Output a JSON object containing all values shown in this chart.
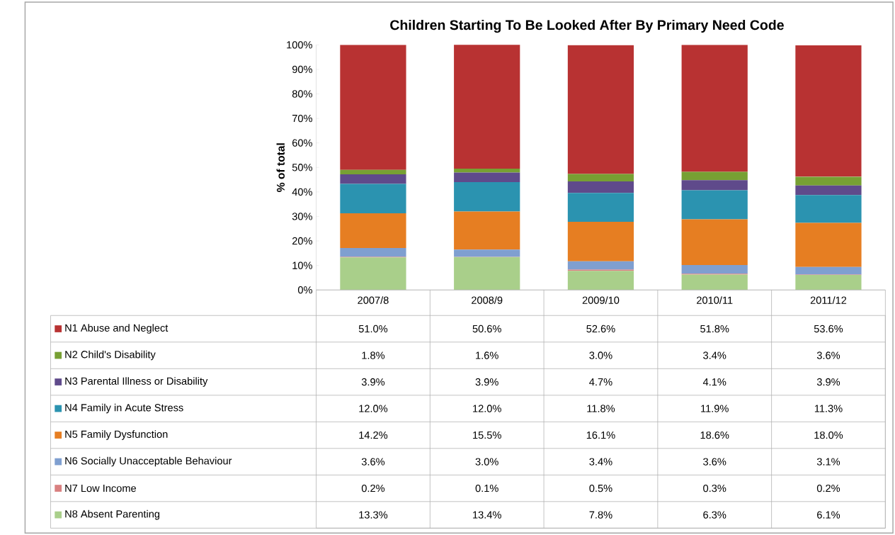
{
  "chart_data": {
    "type": "bar",
    "title": "Children Starting To Be Looked After By Primary Need Code",
    "ylabel": "% of total",
    "stacked": true,
    "legend": "bottom",
    "categories": [
      "2007/8",
      "2008/9",
      "2009/10",
      "2010/11",
      "2011/12"
    ],
    "ylim": [
      0,
      100
    ],
    "yticks": [
      {
        "value": 0,
        "label": "0%"
      },
      {
        "value": 10,
        "label": "10%"
      },
      {
        "value": 20,
        "label": "20%"
      },
      {
        "value": 30,
        "label": "30%"
      },
      {
        "value": 40,
        "label": "40%"
      },
      {
        "value": 50,
        "label": "50%"
      },
      {
        "value": 60,
        "label": "60%"
      },
      {
        "value": 70,
        "label": "70%"
      },
      {
        "value": 80,
        "label": "80%"
      },
      {
        "value": 90,
        "label": "90%"
      },
      {
        "value": 100,
        "label": "100%"
      }
    ],
    "series": [
      {
        "name": "N8 Absent Parenting",
        "color": "#a9cf8a",
        "values": [
          13.3,
          13.4,
          7.8,
          6.3,
          6.1
        ],
        "value_labels": [
          "13.3%",
          "13.4%",
          "7.8%",
          "6.3%",
          "6.1%"
        ]
      },
      {
        "name": "N7 Low Income",
        "color": "#d98080",
        "values": [
          0.2,
          0.1,
          0.5,
          0.3,
          0.2
        ],
        "value_labels": [
          "0.2%",
          "0.1%",
          "0.5%",
          "0.3%",
          "0.2%"
        ]
      },
      {
        "name": "N6 Socially Unacceptable Behaviour",
        "color": "#7f9fd0",
        "values": [
          3.6,
          3.0,
          3.4,
          3.6,
          3.1
        ],
        "value_labels": [
          "3.6%",
          "3.0%",
          "3.4%",
          "3.6%",
          "3.1%"
        ]
      },
      {
        "name": "N5 Family Dysfunction",
        "color": "#e67e22",
        "values": [
          14.2,
          15.5,
          16.1,
          18.6,
          18.0
        ],
        "value_labels": [
          "14.2%",
          "15.5%",
          "16.1%",
          "18.6%",
          "18.0%"
        ]
      },
      {
        "name": "N4 Family in Acute Stress",
        "color": "#2b93b0",
        "values": [
          12.0,
          12.0,
          11.8,
          11.9,
          11.3
        ],
        "value_labels": [
          "12.0%",
          "12.0%",
          "11.8%",
          "11.9%",
          "11.3%"
        ]
      },
      {
        "name": "N3 Parental Illness or Disability",
        "color": "#5f4a8b",
        "values": [
          3.9,
          3.9,
          4.7,
          4.1,
          3.9
        ],
        "value_labels": [
          "3.9%",
          "3.9%",
          "4.7%",
          "4.1%",
          "3.9%"
        ]
      },
      {
        "name": "N2 Child's Disability",
        "color": "#77a033",
        "values": [
          1.8,
          1.6,
          3.0,
          3.4,
          3.6
        ],
        "value_labels": [
          "1.8%",
          "1.6%",
          "3.0%",
          "3.4%",
          "3.6%"
        ]
      },
      {
        "name": "N1 Abuse and Neglect",
        "color": "#b83232",
        "values": [
          51.0,
          50.6,
          52.6,
          51.8,
          53.6
        ],
        "value_labels": [
          "51.0%",
          "50.6%",
          "52.6%",
          "51.8%",
          "53.6%"
        ]
      }
    ]
  }
}
